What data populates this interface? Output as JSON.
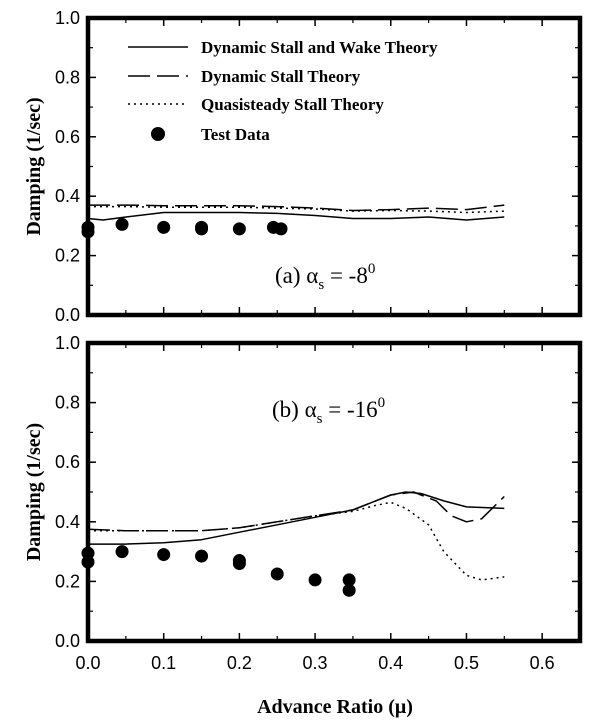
{
  "chart_data": [
    {
      "type": "line",
      "xlabel": "",
      "ylabel": "Damping (1/sec)",
      "xlim": [
        0,
        0.65
      ],
      "ylim": [
        0,
        1.0
      ],
      "yticks": [
        "0.0",
        "0.2",
        "0.4",
        "0.6",
        "0.8",
        "1.0"
      ],
      "grid": false,
      "legend_position": "top-right",
      "annotation": {
        "label": "(a)",
        "symbol": "α",
        "subscript": "s",
        "eq": " = -8",
        "sup": "0"
      },
      "series": [
        {
          "name": "Dynamic Stall and Wake Theory",
          "style": "solid",
          "x": [
            0,
            0.02,
            0.05,
            0.1,
            0.15,
            0.2,
            0.25,
            0.3,
            0.35,
            0.4,
            0.45,
            0.5,
            0.55
          ],
          "y": [
            0.325,
            0.32,
            0.33,
            0.345,
            0.345,
            0.345,
            0.342,
            0.335,
            0.325,
            0.325,
            0.33,
            0.32,
            0.33
          ]
        },
        {
          "name": "Dynamic Stall Theory",
          "style": "dashed",
          "x": [
            0,
            0.05,
            0.1,
            0.15,
            0.2,
            0.25,
            0.3,
            0.35,
            0.4,
            0.45,
            0.5,
            0.55
          ],
          "y": [
            0.37,
            0.37,
            0.368,
            0.368,
            0.368,
            0.365,
            0.36,
            0.352,
            0.355,
            0.36,
            0.355,
            0.37
          ]
        },
        {
          "name": "Quasisteady Stall Theory",
          "style": "dotted",
          "x": [
            0,
            0.05,
            0.1,
            0.15,
            0.2,
            0.25,
            0.3,
            0.35,
            0.4,
            0.45,
            0.5,
            0.55
          ],
          "y": [
            0.365,
            0.365,
            0.363,
            0.363,
            0.363,
            0.36,
            0.357,
            0.35,
            0.352,
            0.35,
            0.345,
            0.35
          ]
        },
        {
          "name": "Test Data",
          "style": "points",
          "x": [
            0,
            0,
            0.045,
            0.1,
            0.15,
            0.15,
            0.2,
            0.245,
            0.255
          ],
          "y": [
            0.295,
            0.28,
            0.305,
            0.295,
            0.295,
            0.29,
            0.29,
            0.295,
            0.29
          ]
        }
      ]
    },
    {
      "type": "line",
      "xlabel": "Advance Ratio (μ)",
      "ylabel": "Damping (1/sec)",
      "xlim": [
        0,
        0.65
      ],
      "ylim": [
        0,
        1.0
      ],
      "xticks": [
        "0.0",
        "0.1",
        "0.2",
        "0.3",
        "0.4",
        "0.5",
        "0.6"
      ],
      "yticks": [
        "0.0",
        "0.2",
        "0.4",
        "0.6",
        "0.8",
        "1.0"
      ],
      "grid": false,
      "annotation": {
        "label": "(b)",
        "symbol": "α",
        "subscript": "s",
        "eq": " = -16",
        "sup": "0"
      },
      "series": [
        {
          "name": "Dynamic Stall and Wake Theory",
          "style": "solid",
          "x": [
            0,
            0.05,
            0.1,
            0.15,
            0.2,
            0.25,
            0.3,
            0.35,
            0.38,
            0.4,
            0.42,
            0.44,
            0.47,
            0.5,
            0.55
          ],
          "y": [
            0.325,
            0.325,
            0.33,
            0.34,
            0.365,
            0.39,
            0.415,
            0.44,
            0.47,
            0.49,
            0.5,
            0.495,
            0.47,
            0.45,
            0.445
          ]
        },
        {
          "name": "Dynamic Stall Theory",
          "style": "dashed",
          "x": [
            0,
            0.05,
            0.1,
            0.15,
            0.2,
            0.25,
            0.3,
            0.35,
            0.38,
            0.4,
            0.43,
            0.46,
            0.48,
            0.5,
            0.52,
            0.55
          ],
          "y": [
            0.375,
            0.37,
            0.37,
            0.37,
            0.38,
            0.4,
            0.42,
            0.44,
            0.47,
            0.49,
            0.5,
            0.47,
            0.42,
            0.4,
            0.41,
            0.485
          ]
        },
        {
          "name": "Quasisteady Stall Theory",
          "style": "dotted",
          "x": [
            0,
            0.05,
            0.1,
            0.15,
            0.2,
            0.25,
            0.3,
            0.35,
            0.38,
            0.4,
            0.42,
            0.45,
            0.47,
            0.5,
            0.52,
            0.55
          ],
          "y": [
            0.37,
            0.37,
            0.37,
            0.37,
            0.38,
            0.4,
            0.42,
            0.435,
            0.455,
            0.465,
            0.445,
            0.39,
            0.3,
            0.22,
            0.205,
            0.215
          ]
        },
        {
          "name": "Test Data",
          "style": "points",
          "x": [
            0,
            0,
            0.045,
            0.1,
            0.15,
            0.2,
            0.2,
            0.25,
            0.3,
            0.345,
            0.345
          ],
          "y": [
            0.295,
            0.265,
            0.3,
            0.29,
            0.285,
            0.27,
            0.26,
            0.225,
            0.205,
            0.205,
            0.17
          ]
        }
      ]
    }
  ]
}
